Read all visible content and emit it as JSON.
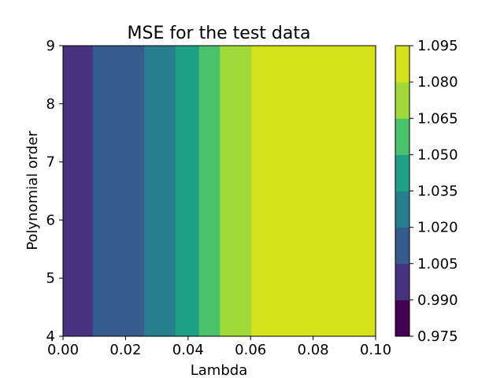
{
  "chart_data": {
    "type": "heatmap",
    "title": "MSE for the test data",
    "xlabel": "Lambda",
    "ylabel": "Polynomial order",
    "xlim": [
      0.0,
      0.1
    ],
    "ylim": [
      4,
      9
    ],
    "x_ticks": [
      "0.00",
      "0.02",
      "0.04",
      "0.06",
      "0.08",
      "0.10"
    ],
    "y_ticks": [
      "4",
      "5",
      "6",
      "7",
      "8",
      "9"
    ],
    "grid": false,
    "bands": [
      {
        "x_start": 0.0,
        "x_end": 0.0095,
        "level": 0.9975
      },
      {
        "x_start": 0.0095,
        "x_end": 0.026,
        "level": 1.0125
      },
      {
        "x_start": 0.026,
        "x_end": 0.036,
        "level": 1.0275
      },
      {
        "x_start": 0.036,
        "x_end": 0.0435,
        "level": 1.0425
      },
      {
        "x_start": 0.0435,
        "x_end": 0.0502,
        "level": 1.0575
      },
      {
        "x_start": 0.0502,
        "x_end": 0.0603,
        "level": 1.0725
      },
      {
        "x_start": 0.0603,
        "x_end": 0.1,
        "level": 1.0875
      }
    ],
    "colorbar": {
      "levels": [
        "0.975",
        "0.990",
        "1.005",
        "1.020",
        "1.035",
        "1.050",
        "1.065",
        "1.080",
        "1.095"
      ],
      "colors": [
        "#440154",
        "#46327e",
        "#365c8d",
        "#277f8e",
        "#1fa187",
        "#4ac16d",
        "#a0da39",
        "#d3e21b"
      ]
    }
  }
}
